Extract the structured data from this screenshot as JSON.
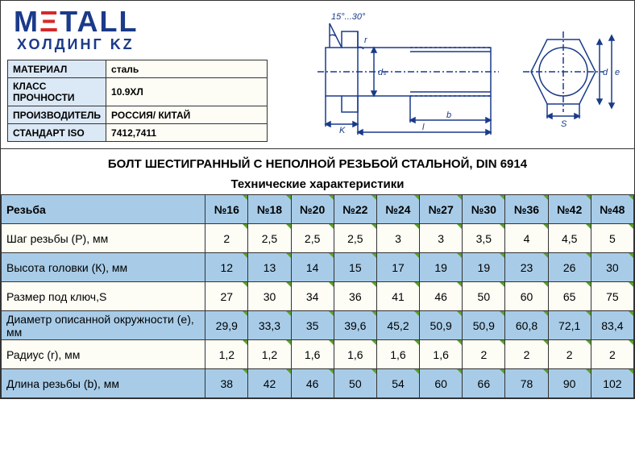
{
  "logo": {
    "text_pre": "M",
    "red": "Ξ",
    "text_post": "TALL",
    "sub": "ХОЛДИНГ KZ"
  },
  "info": {
    "rows": [
      {
        "label": "МАТЕРИАЛ",
        "value": "сталь"
      },
      {
        "label": "КЛАСС ПРОЧНОСТИ",
        "value": "10.9ХЛ"
      },
      {
        "label": "ПРОИЗВОДИТЕЛЬ",
        "value": "РОССИЯ/ КИТАЙ"
      },
      {
        "label": "СТАНДАРТ ISO",
        "value": "7412,7411"
      }
    ]
  },
  "diagram": {
    "angle": "15°...30°",
    "labels": {
      "ds": "dₛ",
      "K": "K",
      "l": "l",
      "b": "b",
      "r": "r",
      "d": "d",
      "e": "e",
      "S": "S"
    }
  },
  "title": "БОЛТ ШЕСТИГРАННЫЙ С НЕПОЛНОЙ РЕЗЬБОЙ СТАЛЬНОЙ, DIN 6914",
  "spec_title": "Технические характеристики",
  "spec": {
    "header": "Резьба",
    "cols": [
      "№16",
      "№18",
      "№20",
      "№22",
      "№24",
      "№27",
      "№30",
      "№36",
      "№42",
      "№48"
    ],
    "rows": [
      {
        "label": "Шаг резьбы (P), мм",
        "v": [
          "2",
          "2,5",
          "2,5",
          "2,5",
          "3",
          "3",
          "3,5",
          "4",
          "4,5",
          "5"
        ]
      },
      {
        "label": "Высота головки (К), мм",
        "v": [
          "12",
          "13",
          "14",
          "15",
          "17",
          "19",
          "19",
          "23",
          "26",
          "30"
        ]
      },
      {
        "label": "Размер под ключ,S",
        "v": [
          "27",
          "30",
          "34",
          "36",
          "41",
          "46",
          "50",
          "60",
          "65",
          "75"
        ]
      },
      {
        "label": "Диаметр описанной окружности (e), мм",
        "v": [
          "29,9",
          "33,3",
          "35",
          "39,6",
          "45,2",
          "50,9",
          "50,9",
          "60,8",
          "72,1",
          "83,4"
        ]
      },
      {
        "label": "Радиус (r), мм",
        "v": [
          "1,2",
          "1,2",
          "1,6",
          "1,6",
          "1,6",
          "1,6",
          "2",
          "2",
          "2",
          "2"
        ]
      },
      {
        "label": "Длина резьбы (b), мм",
        "v": [
          "38",
          "42",
          "46",
          "50",
          "54",
          "60",
          "66",
          "78",
          "90",
          "102"
        ]
      }
    ]
  },
  "colors": {
    "header_bg": "#a8cce8",
    "alt_bg": "#fdfdf6",
    "corner": "#5aa02c",
    "logo_blue": "#1a3a8a",
    "logo_red": "#d62828"
  }
}
